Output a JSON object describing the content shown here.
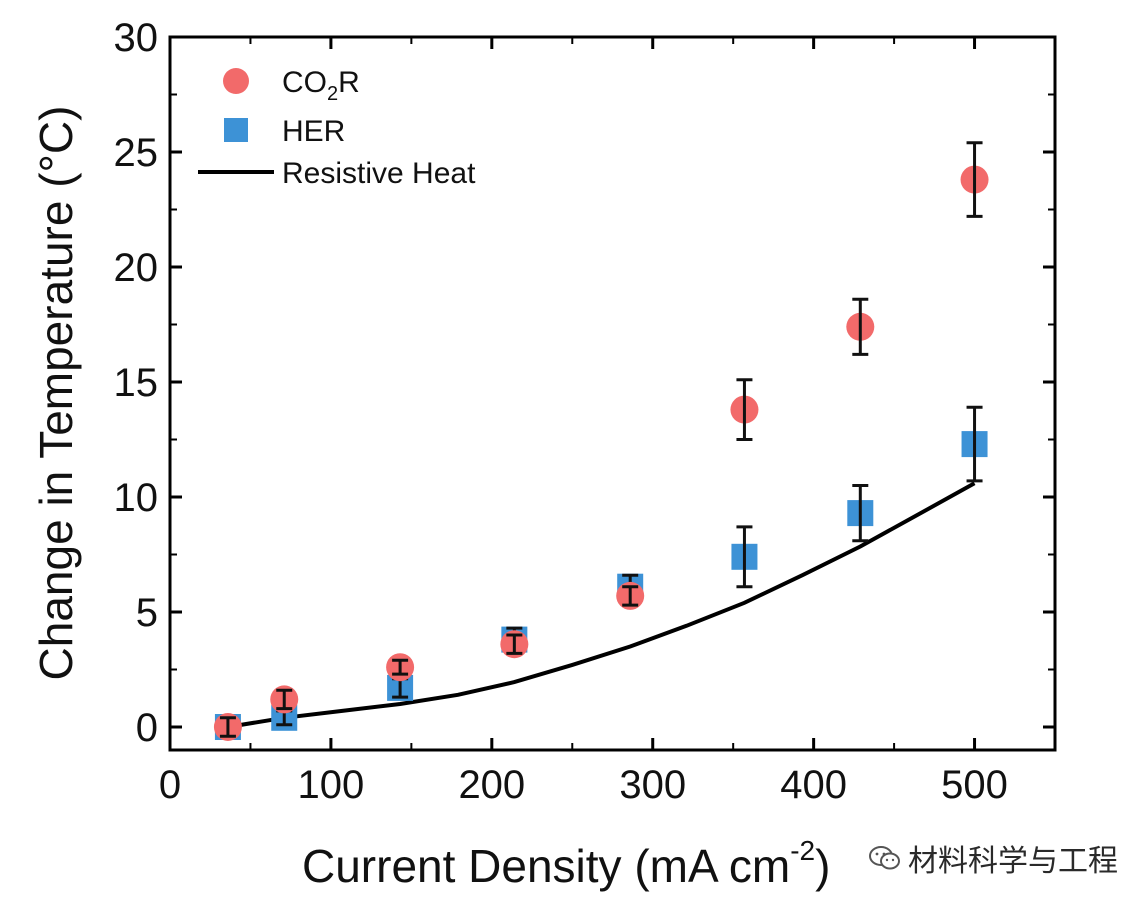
{
  "chart_data": {
    "type": "scatter",
    "xlabel": "Current Density (mA cm",
    "xlabel_superscript": "-2",
    "xlabel_close": ")",
    "ylabel": "Change in Temperature (°C)",
    "xlim": [
      0,
      550
    ],
    "ylim": [
      -1,
      30
    ],
    "xticks": [
      0,
      100,
      200,
      300,
      400,
      500
    ],
    "yticks": [
      0,
      5,
      10,
      15,
      20,
      25,
      30
    ],
    "grid": false,
    "legend_position": "top-left",
    "series": [
      {
        "name_base": "CO",
        "name_sub": "2",
        "name_tail": "R",
        "marker": "circle",
        "color": "#f26a6a",
        "points": [
          {
            "x": 36,
            "y": 0.0,
            "err": 0.4
          },
          {
            "x": 71,
            "y": 1.2,
            "err": 0.4
          },
          {
            "x": 143,
            "y": 2.6,
            "err": 0.3
          },
          {
            "x": 214,
            "y": 3.6,
            "err": 0.4
          },
          {
            "x": 286,
            "y": 5.7,
            "err": 0.4
          },
          {
            "x": 357,
            "y": 13.8,
            "err": 1.3
          },
          {
            "x": 429,
            "y": 17.4,
            "err": 1.2
          },
          {
            "x": 500,
            "y": 23.8,
            "err": 1.6
          }
        ]
      },
      {
        "name": "HER",
        "marker": "square",
        "color": "#3d92d6",
        "points": [
          {
            "x": 36,
            "y": 0.0,
            "err": 0.4
          },
          {
            "x": 71,
            "y": 0.4,
            "err": 0.3
          },
          {
            "x": 143,
            "y": 1.7,
            "err": 0.4
          },
          {
            "x": 214,
            "y": 3.8,
            "err": 0.5
          },
          {
            "x": 286,
            "y": 6.1,
            "err": 0.5
          },
          {
            "x": 357,
            "y": 7.4,
            "err": 1.3
          },
          {
            "x": 429,
            "y": 9.3,
            "err": 1.2
          },
          {
            "x": 500,
            "y": 12.3,
            "err": 1.6
          }
        ]
      },
      {
        "name": "Resistive Heat",
        "marker": "line",
        "color": "#000000",
        "x": [
          36,
          71,
          107,
          143,
          179,
          214,
          250,
          286,
          321,
          357,
          393,
          429,
          464,
          500
        ],
        "y": [
          0.0,
          0.4,
          0.7,
          1.0,
          1.4,
          1.95,
          2.7,
          3.5,
          4.4,
          5.4,
          6.6,
          7.85,
          9.2,
          10.6
        ]
      }
    ]
  },
  "watermark": {
    "text": "材料科学与工程",
    "icon": "wechat-icon"
  }
}
